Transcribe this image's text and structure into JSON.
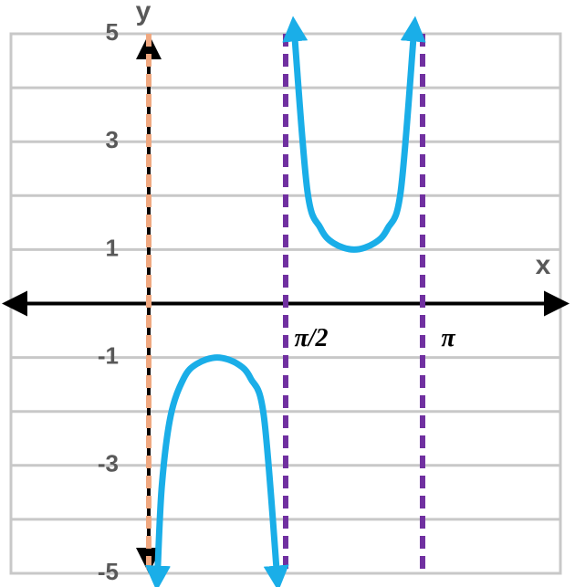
{
  "chart_data": {
    "type": "line",
    "x_label": "x",
    "y_label": "y",
    "xlim": [
      -1.581,
      4.723
    ],
    "ylim": [
      -5,
      5
    ],
    "xticks": [
      {
        "value": 1.5708,
        "label": "π/2"
      },
      {
        "value": 3.1416,
        "label": "π"
      }
    ],
    "yticks": [
      5,
      3,
      1,
      -1,
      -3,
      -5
    ],
    "grid_yticks": [
      4,
      2,
      0,
      -2,
      -4
    ],
    "grid": true,
    "asymptotes": [
      {
        "x": 0,
        "color": "#f0a880"
      },
      {
        "x": 1.5708,
        "color": "#7030a0"
      },
      {
        "x": 3.1416,
        "color": "#7030a0"
      }
    ],
    "x": [
      0.1007,
      0.15,
      0.25,
      0.4,
      0.55,
      0.7854,
      1.02,
      1.17,
      1.32,
      1.4701,
      1.5708,
      1.6715,
      1.82,
      1.97,
      2.12,
      2.3562,
      2.59,
      2.74,
      2.89,
      3.0409
    ],
    "series": [
      {
        "name": "y",
        "color": "#1aaee8",
        "values": [
          -5,
          -3.38,
          -2.09,
          -1.39,
          -1.12,
          -1,
          -1.12,
          -1.39,
          -2.08,
          -5,
          null,
          5,
          2.09,
          1.4,
          1.12,
          1,
          1.12,
          1.39,
          2.07,
          5
        ]
      }
    ]
  }
}
